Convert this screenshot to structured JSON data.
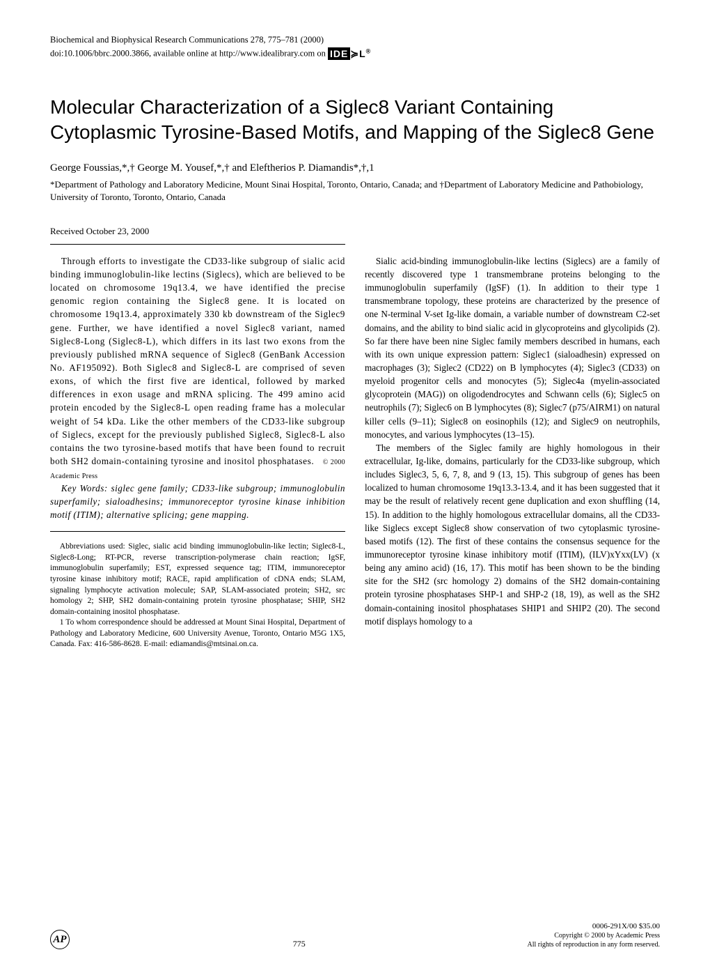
{
  "header": {
    "journal_line": "Biochemical and Biophysical Research Communications 278, 775–781 (2000)",
    "doi_line_prefix": "doi:10.1006/bbrc.2000.3866, available online at http://www.idealibrary.com on ",
    "ideal_logo_text": "IDE",
    "ideal_logo_suffix": "L",
    "ideal_reg": "®"
  },
  "title": "Molecular Characterization of a Siglec8 Variant Containing Cytoplasmic Tyrosine-Based Motifs, and Mapping of the Siglec8 Gene",
  "authors": "George Foussias,*,† George M. Yousef,*,† and Eleftherios P. Diamandis*,†,1",
  "affiliations": "*Department of Pathology and Laboratory Medicine, Mount Sinai Hospital, Toronto, Ontario, Canada; and †Department of Laboratory Medicine and Pathobiology, University of Toronto, Toronto, Ontario, Canada",
  "received": "Received October 23, 2000",
  "abstract": "Through efforts to investigate the CD33-like subgroup of sialic acid binding immunoglobulin-like lectins (Siglecs), which are believed to be located on chromosome 19q13.4, we have identified the precise genomic region containing the Siglec8 gene. It is located on chromosome 19q13.4, approximately 330 kb downstream of the Siglec9 gene. Further, we have identified a novel Siglec8 variant, named Siglec8-Long (Siglec8-L), which differs in its last two exons from the previously published mRNA sequence of Siglec8 (GenBank Accession No. AF195092). Both Siglec8 and Siglec8-L are comprised of seven exons, of which the first five are identical, followed by marked differences in exon usage and mRNA splicing. The 499 amino acid protein encoded by the Siglec8-L open reading frame has a molecular weight of 54 kDa. Like the other members of the CD33-like subgroup of Siglecs, except for the previously published Siglec8, Siglec8-L also contains the two tyrosine-based motifs that have been found to recruit both SH2 domain-containing tyrosine and inositol phosphatases.",
  "copyright_inline": "© 2000 Academic Press",
  "keywords": "Key Words: siglec gene family; CD33-like subgroup; immunoglobulin superfamily; sialoadhesins; immunoreceptor tyrosine kinase inhibition motif (ITIM); alternative splicing; gene mapping.",
  "abbreviations": "Abbreviations used: Siglec, sialic acid binding immunoglobulin-like lectin; Siglec8-L, Siglec8-Long; RT-PCR, reverse transcription-polymerase chain reaction; IgSF, immunoglobulin superfamily; EST, expressed sequence tag; ITIM, immunoreceptor tyrosine kinase inhibitory motif; RACE, rapid amplification of cDNA ends; SLAM, signaling lymphocyte activation molecule; SAP, SLAM-associated protein; SH2, src homology 2; SHP, SH2 domain-containing protein tyrosine phosphatase; SHIP, SH2 domain-containing inositol phosphatase.",
  "footnote1": "1 To whom correspondence should be addressed at Mount Sinai Hospital, Department of Pathology and Laboratory Medicine, 600 University Avenue, Toronto, Ontario M5G 1X5, Canada. Fax: 416-586-8628. E-mail: ediamandis@mtsinai.on.ca.",
  "intro_p1": "Sialic acid-binding immunoglobulin-like lectins (Siglecs) are a family of recently discovered type 1 transmembrane proteins belonging to the immunoglobulin superfamily (IgSF) (1). In addition to their type 1 transmembrane topology, these proteins are characterized by the presence of one N-terminal V-set Ig-like domain, a variable number of downstream C2-set domains, and the ability to bind sialic acid in glycoproteins and glycolipids (2). So far there have been nine Siglec family members described in humans, each with its own unique expression pattern: Siglec1 (sialoadhesin) expressed on macrophages (3); Siglec2 (CD22) on B lymphocytes (4); Siglec3 (CD33) on myeloid progenitor cells and monocytes (5); Siglec4a (myelin-associated glycoprotein (MAG)) on oligodendrocytes and Schwann cells (6); Siglec5 on neutrophils (7); Siglec6 on B lymphocytes (8); Siglec7 (p75/AIRM1) on natural killer cells (9–11); Siglec8 on eosinophils (12); and Siglec9 on neutrophils, monocytes, and various lymphocytes (13–15).",
  "intro_p2": "The members of the Siglec family are highly homologous in their extracellular, Ig-like, domains, particularly for the CD33-like subgroup, which includes Siglec3, 5, 6, 7, 8, and 9 (13, 15). This subgroup of genes has been localized to human chromosome 19q13.3-13.4, and it has been suggested that it may be the result of relatively recent gene duplication and exon shuffling (14, 15). In addition to the highly homologous extracellular domains, all the CD33-like Siglecs except Siglec8 show conservation of two cytoplasmic tyrosine-based motifs (12). The first of these contains the consensus sequence for the immunoreceptor tyrosine kinase inhibitory motif (ITIM), (ILV)xYxx(LV) (x being any amino acid) (16, 17). This motif has been shown to be the binding site for the SH2 (src homology 2) domains of the SH2 domain-containing protein tyrosine phosphatases SHP-1 and SHP-2 (18, 19), as well as the SH2 domain-containing inositol phosphatases SHIP1 and SHIP2 (20). The second motif displays homology to a",
  "footer": {
    "page_number": "775",
    "issn": "0006-291X/00 $35.00",
    "copyright": "Copyright © 2000 by Academic Press",
    "rights": "All rights of reproduction in any form reserved."
  }
}
